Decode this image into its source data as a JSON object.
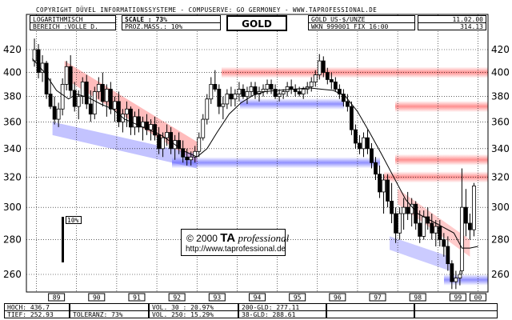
{
  "header": {
    "copyright": "COPYRIGHT  DÜVEL INFORMATIONSSYSTEME - COMPUSERVE: GO GERMONEY - WWW.TAPROFESSIONAL.DE",
    "scale_type": "LOGARITHMISCH",
    "range": "BEREICH :VOLLE D.",
    "scale_label": "SCALE : 73%",
    "proz_mass": "PROZ.MASS.: 10%",
    "instrument": "GOLD",
    "unit": "GOLD US-$/UNZE",
    "wkn": "WKN 999001  FIX 16:00",
    "date": "11.02.00",
    "last": "314.13"
  },
  "footer": {
    "hoch": "HOCH: 436.7",
    "tief": "TIEF: 252.93",
    "toleranz": "TOLERANZ: 73%",
    "vol30": "VOL. 30 : 20.97%",
    "vol250": "VOL. 250: 15.29%",
    "gld200": "200-GLD: 277.11",
    "gld38": "38-GLD: 288.61"
  },
  "watermark": {
    "prefix": "© 2000",
    "brand": "TA",
    "brand2": "professional",
    "url": "http://www.taprofessional.de"
  },
  "pct_label": "10%",
  "chart_data": {
    "type": "candlestick",
    "title": "GOLD",
    "y_scale": "log",
    "ylim": [
      250,
      430
    ],
    "y_ticks": [
      260,
      280,
      300,
      320,
      340,
      360,
      380,
      400,
      420
    ],
    "x_tick_labels": [
      "89",
      "90",
      "91",
      "92",
      "93",
      "94",
      "95",
      "96",
      "97",
      "98",
      "99",
      "00"
    ],
    "xlim": [
      1988.75,
      2000.25
    ],
    "grid": true,
    "resistance_zones": [
      400,
      372,
      332,
      320
    ],
    "support_zones": [
      374,
      330,
      257
    ],
    "colors": {
      "resistance": "#ff6a6a",
      "support": "#6a6aff",
      "grid": "#000000"
    },
    "moving_average": {
      "label": "200-GLD",
      "points": [
        [
          1988.9,
          412
        ],
        [
          1989.2,
          400
        ],
        [
          1989.5,
          385
        ],
        [
          1989.8,
          378
        ],
        [
          1990.0,
          382
        ],
        [
          1990.3,
          379
        ],
        [
          1990.6,
          374
        ],
        [
          1990.9,
          370
        ],
        [
          1991.2,
          362
        ],
        [
          1991.5,
          358
        ],
        [
          1991.8,
          354
        ],
        [
          1992.1,
          350
        ],
        [
          1992.4,
          344
        ],
        [
          1992.7,
          338
        ],
        [
          1993.0,
          334
        ],
        [
          1993.25,
          340
        ],
        [
          1993.5,
          352
        ],
        [
          1993.8,
          366
        ],
        [
          1994.1,
          375
        ],
        [
          1994.4,
          381
        ],
        [
          1994.7,
          384
        ],
        [
          1995.0,
          385
        ],
        [
          1995.4,
          386
        ],
        [
          1995.8,
          387
        ],
        [
          1996.1,
          386
        ],
        [
          1996.4,
          385
        ],
        [
          1996.7,
          380
        ],
        [
          1997.0,
          368
        ],
        [
          1997.3,
          352
        ],
        [
          1997.6,
          336
        ],
        [
          1997.9,
          320
        ],
        [
          1998.2,
          305
        ],
        [
          1998.5,
          296
        ],
        [
          1998.8,
          292
        ],
        [
          1999.1,
          288
        ],
        [
          1999.4,
          284
        ],
        [
          1999.6,
          275
        ],
        [
          1999.8,
          275
        ],
        [
          2000.0,
          276
        ]
      ]
    },
    "candles": [
      [
        1988.95,
        410,
        430,
        405,
        420
      ],
      [
        1989.05,
        420,
        425,
        395,
        400
      ],
      [
        1989.15,
        400,
        415,
        392,
        408
      ],
      [
        1989.25,
        408,
        410,
        378,
        382
      ],
      [
        1989.35,
        382,
        395,
        370,
        372
      ],
      [
        1989.45,
        372,
        380,
        358,
        362
      ],
      [
        1989.55,
        362,
        375,
        356,
        370
      ],
      [
        1989.65,
        370,
        395,
        365,
        390
      ],
      [
        1989.75,
        390,
        410,
        385,
        405
      ],
      [
        1989.85,
        405,
        415,
        380,
        385
      ],
      [
        1989.95,
        385,
        392,
        368,
        372
      ],
      [
        1990.05,
        372,
        385,
        362,
        380
      ],
      [
        1990.15,
        380,
        396,
        374,
        392
      ],
      [
        1990.25,
        392,
        398,
        370,
        374
      ],
      [
        1990.35,
        374,
        385,
        360,
        366
      ],
      [
        1990.45,
        366,
        388,
        362,
        384
      ],
      [
        1990.55,
        384,
        396,
        378,
        390
      ],
      [
        1990.65,
        390,
        400,
        372,
        376
      ],
      [
        1990.75,
        376,
        390,
        364,
        386
      ],
      [
        1990.85,
        386,
        392,
        366,
        370
      ],
      [
        1990.95,
        370,
        380,
        360,
        376
      ],
      [
        1991.05,
        376,
        384,
        356,
        360
      ],
      [
        1991.15,
        360,
        370,
        352,
        366
      ],
      [
        1991.25,
        366,
        376,
        356,
        370
      ],
      [
        1991.35,
        370,
        372,
        350,
        356
      ],
      [
        1991.45,
        356,
        368,
        350,
        364
      ],
      [
        1991.55,
        364,
        370,
        352,
        356
      ],
      [
        1991.65,
        356,
        364,
        346,
        360
      ],
      [
        1991.75,
        360,
        366,
        350,
        354
      ],
      [
        1991.85,
        354,
        362,
        346,
        358
      ],
      [
        1991.95,
        358,
        364,
        346,
        350
      ],
      [
        1992.05,
        350,
        356,
        336,
        340
      ],
      [
        1992.15,
        340,
        352,
        334,
        348
      ],
      [
        1992.25,
        348,
        358,
        342,
        352
      ],
      [
        1992.35,
        352,
        356,
        336,
        340
      ],
      [
        1992.45,
        340,
        350,
        332,
        346
      ],
      [
        1992.55,
        346,
        352,
        336,
        340
      ],
      [
        1992.65,
        340,
        346,
        330,
        334
      ],
      [
        1992.75,
        334,
        340,
        328,
        332
      ],
      [
        1992.85,
        332,
        338,
        328,
        334
      ],
      [
        1992.95,
        334,
        342,
        330,
        338
      ],
      [
        1993.05,
        338,
        352,
        334,
        348
      ],
      [
        1993.15,
        348,
        366,
        346,
        362
      ],
      [
        1993.25,
        362,
        382,
        358,
        378
      ],
      [
        1993.35,
        378,
        396,
        374,
        390
      ],
      [
        1993.45,
        390,
        402,
        384,
        386
      ],
      [
        1993.55,
        386,
        390,
        366,
        372
      ],
      [
        1993.65,
        372,
        380,
        362,
        374
      ],
      [
        1993.75,
        374,
        386,
        370,
        382
      ],
      [
        1993.85,
        382,
        388,
        372,
        378
      ],
      [
        1993.95,
        378,
        386,
        372,
        382
      ],
      [
        1994.05,
        382,
        392,
        376,
        386
      ],
      [
        1994.15,
        386,
        390,
        378,
        380
      ],
      [
        1994.25,
        380,
        388,
        374,
        384
      ],
      [
        1994.35,
        384,
        392,
        380,
        388
      ],
      [
        1994.45,
        388,
        392,
        378,
        382
      ],
      [
        1994.55,
        382,
        388,
        376,
        384
      ],
      [
        1994.65,
        384,
        390,
        380,
        386
      ],
      [
        1994.75,
        386,
        394,
        382,
        390
      ],
      [
        1994.85,
        390,
        394,
        382,
        386
      ],
      [
        1994.95,
        386,
        390,
        378,
        380
      ],
      [
        1995.05,
        380,
        386,
        376,
        382
      ],
      [
        1995.15,
        382,
        386,
        378,
        384
      ],
      [
        1995.25,
        384,
        392,
        380,
        388
      ],
      [
        1995.35,
        388,
        394,
        382,
        386
      ],
      [
        1995.45,
        386,
        390,
        380,
        384
      ],
      [
        1995.55,
        384,
        388,
        380,
        382
      ],
      [
        1995.65,
        382,
        388,
        378,
        386
      ],
      [
        1995.75,
        386,
        392,
        382,
        388
      ],
      [
        1995.85,
        388,
        396,
        384,
        392
      ],
      [
        1995.95,
        392,
        402,
        388,
        398
      ],
      [
        1996.05,
        398,
        416,
        394,
        410
      ],
      [
        1996.15,
        410,
        414,
        396,
        400
      ],
      [
        1996.25,
        400,
        404,
        390,
        394
      ],
      [
        1996.35,
        394,
        400,
        386,
        392
      ],
      [
        1996.45,
        392,
        396,
        384,
        386
      ],
      [
        1996.55,
        386,
        390,
        378,
        382
      ],
      [
        1996.65,
        382,
        386,
        372,
        376
      ],
      [
        1996.75,
        376,
        382,
        368,
        372
      ],
      [
        1996.85,
        372,
        376,
        350,
        354
      ],
      [
        1996.95,
        354,
        358,
        340,
        344
      ],
      [
        1997.05,
        344,
        350,
        336,
        340
      ],
      [
        1997.15,
        340,
        352,
        334,
        348
      ],
      [
        1997.25,
        348,
        354,
        336,
        340
      ],
      [
        1997.35,
        340,
        344,
        326,
        330
      ],
      [
        1997.45,
        330,
        334,
        318,
        322
      ],
      [
        1997.55,
        322,
        328,
        306,
        310
      ],
      [
        1997.65,
        310,
        322,
        296,
        318
      ],
      [
        1997.75,
        318,
        322,
        300,
        304
      ],
      [
        1997.85,
        304,
        316,
        290,
        296
      ],
      [
        1997.95,
        296,
        300,
        278,
        284
      ],
      [
        1998.05,
        284,
        300,
        280,
        296
      ],
      [
        1998.15,
        296,
        306,
        286,
        300
      ],
      [
        1998.25,
        300,
        310,
        292,
        296
      ],
      [
        1998.35,
        296,
        306,
        288,
        302
      ],
      [
        1998.45,
        302,
        304,
        286,
        290
      ],
      [
        1998.55,
        290,
        298,
        278,
        282
      ],
      [
        1998.65,
        282,
        298,
        280,
        294
      ],
      [
        1998.75,
        294,
        300,
        286,
        290
      ],
      [
        1998.85,
        290,
        296,
        280,
        284
      ],
      [
        1998.95,
        284,
        292,
        276,
        288
      ],
      [
        1999.05,
        288,
        292,
        276,
        280
      ],
      [
        1999.15,
        280,
        284,
        270,
        276
      ],
      [
        1999.25,
        276,
        282,
        262,
        266
      ],
      [
        1999.35,
        266,
        268,
        252,
        256
      ],
      [
        1999.45,
        256,
        262,
        252,
        258
      ],
      [
        1999.55,
        258,
        262,
        254,
        260
      ],
      [
        1999.6,
        262,
        326,
        260,
        300
      ],
      [
        1999.7,
        300,
        312,
        282,
        290
      ],
      [
        1999.8,
        290,
        296,
        280,
        286
      ],
      [
        1999.9,
        286,
        316,
        282,
        314
      ]
    ]
  }
}
